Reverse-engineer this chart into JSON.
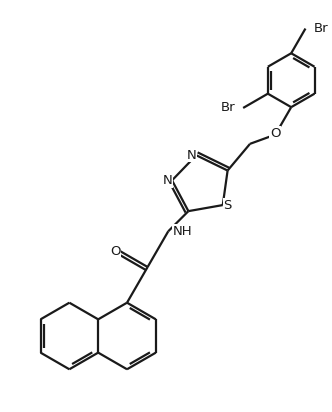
{
  "background_color": "#ffffff",
  "line_color": "#1a1a1a",
  "line_width": 1.6,
  "font_size": 9.5,
  "figsize": [
    3.32,
    4.12
  ],
  "dpi": 100,
  "xlim": [
    0,
    10
  ],
  "ylim": [
    0,
    12
  ]
}
